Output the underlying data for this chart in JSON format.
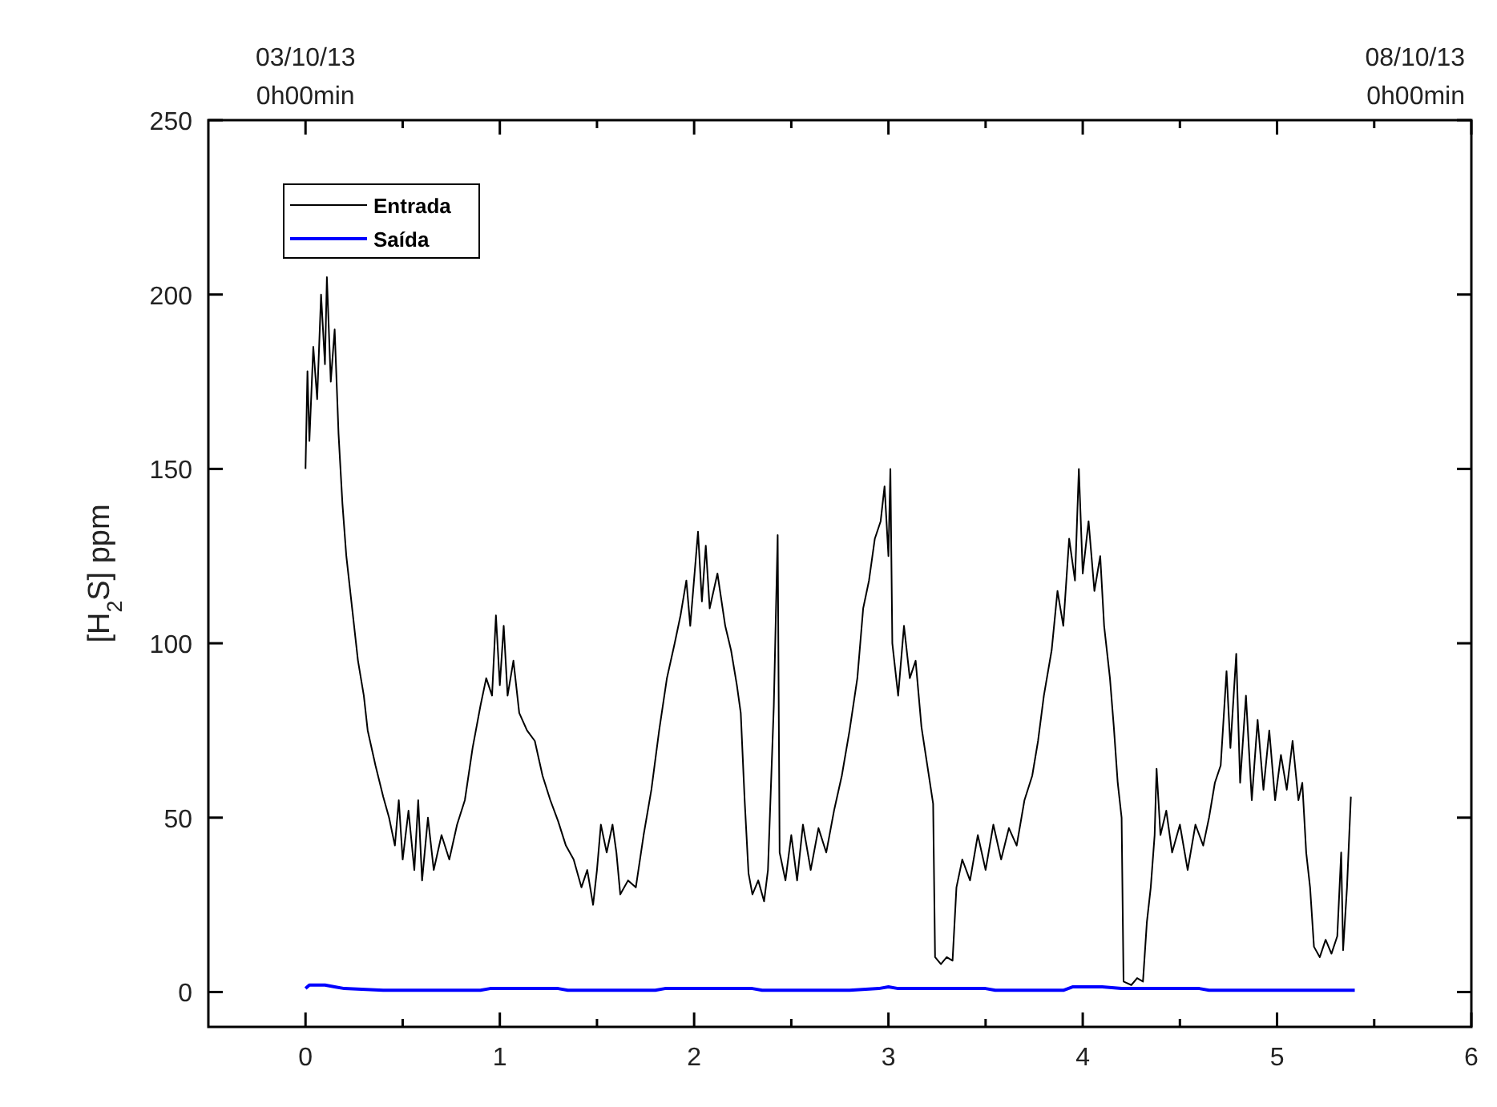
{
  "chart_data": {
    "type": "line",
    "ylabel": "[H$_{2}$S] ppm",
    "xlim": [
      -0.5,
      6
    ],
    "ylim": [
      -10,
      250
    ],
    "xticks": [
      0,
      {
        "value": 0.5,
        "label": null
      },
      1,
      {
        "value": 1.5,
        "label": null
      },
      2,
      {
        "value": 2.5,
        "label": null
      },
      3,
      {
        "value": 3.5,
        "label": null
      },
      4,
      {
        "value": 4.5,
        "label": null
      },
      5,
      {
        "value": 5.5,
        "label": null
      },
      6
    ],
    "yticks": [
      0,
      50,
      100,
      150,
      200,
      250
    ],
    "annotations": [
      {
        "text": "03/10/13\n0h00min",
        "x": 0
      },
      "08/10/13\n0h00min"
    ],
    "grid": false,
    "legend": "top left",
    "marker": "none",
    "line_style": "solid",
    "series": [
      {
        "name": "Entrada",
        "color": "#000000",
        "x": [
          0,
          0.01,
          0.02,
          0.04,
          0.06,
          0.08,
          0.1,
          0.11,
          0.13,
          0.15,
          0.17,
          0.19,
          0.21,
          0.24,
          0.27,
          0.3,
          0.32,
          0.36,
          0.4,
          0.43,
          0.46,
          0.48,
          0.5,
          0.53,
          0.56,
          0.58,
          0.6,
          0.63,
          0.66,
          0.7,
          0.74,
          0.78,
          0.82,
          0.86,
          0.9,
          0.93,
          0.96,
          0.98,
          1.0,
          1.02,
          1.04,
          1.07,
          1.1,
          1.14,
          1.18,
          1.22,
          1.26,
          1.3,
          1.34,
          1.38,
          1.42,
          1.45,
          1.48,
          1.5,
          1.52,
          1.55,
          1.58,
          1.6,
          1.62,
          1.66,
          1.7,
          1.74,
          1.78,
          1.82,
          1.86,
          1.9,
          1.93,
          1.96,
          1.98,
          2.02,
          2.04,
          2.06,
          2.08,
          2.12,
          2.16,
          2.19,
          2.22,
          2.24,
          2.26,
          2.28,
          2.3,
          2.33,
          2.36,
          2.38,
          2.41,
          2.43,
          2.44,
          2.47,
          2.5,
          2.53,
          2.56,
          2.6,
          2.64,
          2.68,
          2.72,
          2.76,
          2.8,
          2.84,
          2.87,
          2.9,
          2.93,
          2.96,
          2.98,
          3.0,
          3.01,
          3.02,
          3.05,
          3.08,
          3.11,
          3.14,
          3.17,
          3.2,
          3.23,
          3.24,
          3.27,
          3.3,
          3.33,
          3.35,
          3.38,
          3.42,
          3.46,
          3.5,
          3.54,
          3.58,
          3.62,
          3.66,
          3.7,
          3.74,
          3.77,
          3.8,
          3.84,
          3.87,
          3.9,
          3.93,
          3.96,
          3.98,
          4.0,
          4.03,
          4.06,
          4.09,
          4.11,
          4.14,
          4.16,
          4.18,
          4.2,
          4.21,
          4.25,
          4.28,
          4.31,
          4.33,
          4.35,
          4.37,
          4.38,
          4.4,
          4.43,
          4.46,
          4.5,
          4.54,
          4.58,
          4.62,
          4.65,
          4.68,
          4.71,
          4.74,
          4.76,
          4.79,
          4.81,
          4.84,
          4.87,
          4.9,
          4.93,
          4.96,
          4.99,
          5.02,
          5.05,
          5.08,
          5.11,
          5.13,
          5.15,
          5.17,
          5.19,
          5.22,
          5.25,
          5.28,
          5.31,
          5.33,
          5.34,
          5.36,
          5.38
        ],
        "values": [
          150,
          178,
          158,
          185,
          170,
          200,
          180,
          205,
          175,
          190,
          160,
          140,
          125,
          110,
          95,
          85,
          75,
          65,
          56,
          50,
          42,
          55,
          38,
          52,
          35,
          55,
          32,
          50,
          35,
          45,
          38,
          48,
          55,
          70,
          82,
          90,
          85,
          108,
          88,
          105,
          85,
          95,
          80,
          75,
          72,
          62,
          55,
          49,
          42,
          38,
          30,
          35,
          25,
          35,
          48,
          40,
          48,
          40,
          28,
          32,
          30,
          45,
          58,
          75,
          90,
          100,
          108,
          118,
          105,
          132,
          112,
          128,
          110,
          120,
          105,
          98,
          88,
          80,
          55,
          34,
          28,
          32,
          26,
          35,
          82,
          131,
          40,
          32,
          45,
          32,
          48,
          35,
          47,
          40,
          52,
          62,
          75,
          90,
          110,
          118,
          130,
          135,
          145,
          125,
          150,
          100,
          85,
          105,
          90,
          95,
          76,
          65,
          54,
          10,
          8,
          10,
          9,
          30,
          38,
          32,
          45,
          35,
          48,
          38,
          47,
          42,
          55,
          62,
          72,
          85,
          98,
          115,
          105,
          130,
          118,
          150,
          120,
          135,
          115,
          125,
          105,
          90,
          76,
          60,
          50,
          3,
          2,
          4,
          3,
          20,
          30,
          45,
          64,
          45,
          52,
          40,
          48,
          35,
          48,
          42,
          50,
          60,
          65,
          92,
          70,
          97,
          60,
          85,
          55,
          78,
          58,
          75,
          55,
          68,
          58,
          72,
          55,
          60,
          40,
          30,
          13,
          10,
          15,
          11,
          16,
          40,
          12,
          30,
          56
        ]
      },
      {
        "name": "Saída",
        "color": "#0000ff",
        "x": [
          0,
          0.02,
          0.1,
          0.15,
          0.2,
          0.4,
          0.9,
          0.95,
          1.3,
          1.35,
          1.8,
          1.85,
          2.3,
          2.35,
          2.8,
          2.95,
          3.0,
          3.05,
          3.5,
          3.55,
          3.9,
          3.95,
          4.1,
          4.2,
          4.6,
          4.65,
          5.4
        ],
        "values": [
          1,
          2,
          2,
          1.5,
          1,
          0.5,
          0.5,
          1,
          1,
          0.5,
          0.5,
          1,
          1,
          0.5,
          0.5,
          1,
          1.5,
          1,
          1,
          0.5,
          0.5,
          1.5,
          1.5,
          1,
          1,
          0.5,
          0.5
        ]
      }
    ]
  }
}
